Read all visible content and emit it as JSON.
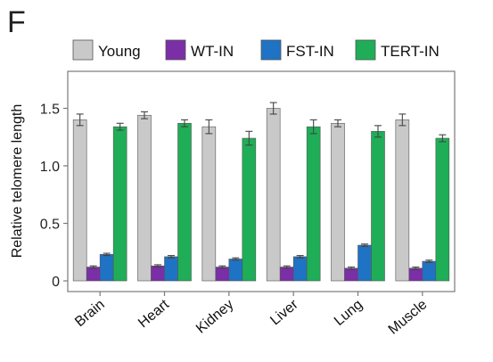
{
  "panel_label": "F",
  "colors": {
    "young": "#c9c9c9",
    "wt_in": "#7a2fa6",
    "fst_in": "#1f73c4",
    "tert_in": "#1fae57",
    "frame": "#7a7a7a",
    "error_bar": "#444444"
  },
  "chart_data": {
    "type": "bar",
    "ylabel": "Relative telomere length",
    "xlabel": "",
    "ylim": [
      0,
      1.8
    ],
    "yticks": [
      "0",
      "0.5",
      "1.0",
      "1.5"
    ],
    "ytick_values": [
      0,
      0.5,
      1.0,
      1.5
    ],
    "grid": false,
    "legend_position": "top",
    "categories": [
      "Brain",
      "Heart",
      "Kidney",
      "Liver",
      "Lung",
      "Muscle"
    ],
    "series": [
      {
        "name": "Young",
        "color_key": "young",
        "values": [
          1.4,
          1.44,
          1.34,
          1.5,
          1.37,
          1.4
        ],
        "errors": [
          0.05,
          0.03,
          0.06,
          0.05,
          0.03,
          0.05
        ]
      },
      {
        "name": "WT-IN",
        "color_key": "wt_in",
        "values": [
          0.12,
          0.13,
          0.12,
          0.12,
          0.11,
          0.11
        ],
        "errors": [
          0.01,
          0.01,
          0.01,
          0.01,
          0.01,
          0.01
        ]
      },
      {
        "name": "FST-IN",
        "color_key": "fst_in",
        "values": [
          0.23,
          0.21,
          0.19,
          0.21,
          0.31,
          0.17
        ],
        "errors": [
          0.01,
          0.01,
          0.01,
          0.01,
          0.01,
          0.01
        ]
      },
      {
        "name": "TERT-IN",
        "color_key": "tert_in",
        "values": [
          1.34,
          1.37,
          1.24,
          1.34,
          1.3,
          1.24
        ],
        "errors": [
          0.03,
          0.03,
          0.06,
          0.06,
          0.05,
          0.03
        ]
      }
    ]
  }
}
